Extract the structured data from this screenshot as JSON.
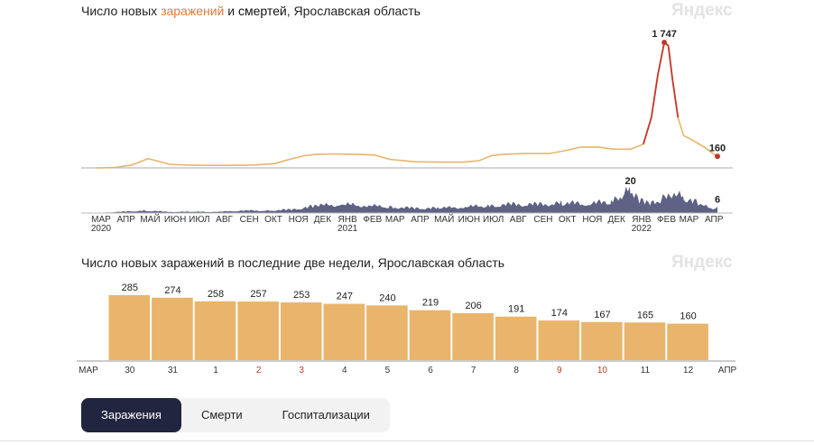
{
  "chart_data": [
    {
      "type": "line",
      "title_parts": [
        "Число новых ",
        "заражений",
        " и ",
        "смертей",
        ", Ярославская область"
      ],
      "logo": "Яндекс",
      "series": [
        {
          "name": "заражений",
          "color": "#e9b46b",
          "peak_color": "#c0392b",
          "x": [
            "2020-03-01",
            "2020-03-25",
            "2020-04-15",
            "2020-05-05",
            "2020-05-15",
            "2020-06-01",
            "2020-06-20",
            "2020-07-15",
            "2020-08-15",
            "2020-09-15",
            "2020-10-10",
            "2020-10-25",
            "2020-11-15",
            "2020-12-01",
            "2020-12-20",
            "2021-01-15",
            "2021-02-10",
            "2021-03-01",
            "2021-04-01",
            "2021-05-01",
            "2021-06-01",
            "2021-06-20",
            "2021-07-05",
            "2021-07-20",
            "2021-08-15",
            "2021-09-15",
            "2021-10-05",
            "2021-10-25",
            "2021-11-15",
            "2021-12-05",
            "2021-12-25",
            "2022-01-10",
            "2022-01-20",
            "2022-01-28",
            "2022-02-05",
            "2022-02-10",
            "2022-02-15",
            "2022-02-22",
            "2022-03-01",
            "2022-03-10",
            "2022-03-25",
            "2022-04-12"
          ],
          "y": [
            0,
            5,
            40,
            130,
            100,
            50,
            40,
            35,
            35,
            40,
            60,
            110,
            170,
            190,
            195,
            190,
            180,
            120,
            85,
            80,
            80,
            100,
            170,
            190,
            200,
            200,
            240,
            290,
            290,
            260,
            260,
            330,
            700,
            1300,
            1747,
            1700,
            1250,
            700,
            450,
            400,
            300,
            160
          ]
        },
        {
          "name": "смертей",
          "color": "#5f6285",
          "x": [
            "2020-03-01",
            "2020-04-01",
            "2020-05-01",
            "2020-06-01",
            "2020-07-01",
            "2020-08-01",
            "2020-09-01",
            "2020-10-01",
            "2020-11-01",
            "2020-12-01",
            "2021-01-01",
            "2021-02-01",
            "2021-03-01",
            "2021-04-01",
            "2021-05-01",
            "2021-06-01",
            "2021-07-01",
            "2021-08-01",
            "2021-09-01",
            "2021-10-01",
            "2021-11-01",
            "2021-12-01",
            "2021-12-15",
            "2021-12-25",
            "2022-01-05",
            "2022-01-20",
            "2022-02-01",
            "2022-02-15",
            "2022-03-01",
            "2022-03-20",
            "2022-04-05",
            "2022-04-12"
          ],
          "y": [
            0,
            1,
            2,
            1,
            1,
            1,
            2,
            2,
            3,
            6,
            7,
            6,
            5,
            4,
            4,
            5,
            6,
            7,
            7,
            8,
            8,
            9,
            14,
            20,
            10,
            8,
            11,
            15,
            13,
            8,
            3,
            6
          ]
        }
      ],
      "labels": {
        "peak": "1 747",
        "last_infections": "160",
        "peak_deaths": "20",
        "last_deaths": "6"
      },
      "x_ticks": [
        {
          "label": "МАР",
          "year": "2020",
          "date": "2020-03-01"
        },
        {
          "label": "АПР",
          "date": "2020-04-01"
        },
        {
          "label": "МАЙ",
          "date": "2020-05-01"
        },
        {
          "label": "ИЮН",
          "date": "2020-06-01"
        },
        {
          "label": "ИЮЛ",
          "date": "2020-07-01"
        },
        {
          "label": "АВГ",
          "date": "2020-08-01"
        },
        {
          "label": "СЕН",
          "date": "2020-09-01"
        },
        {
          "label": "ОКТ",
          "date": "2020-10-01"
        },
        {
          "label": "НОЯ",
          "date": "2020-11-01"
        },
        {
          "label": "ДЕК",
          "date": "2020-12-01"
        },
        {
          "label": "ЯНВ",
          "year": "2021",
          "date": "2021-01-01"
        },
        {
          "label": "ФЕВ",
          "date": "2021-02-01"
        },
        {
          "label": "МАР",
          "date": "2021-03-01"
        },
        {
          "label": "АПР",
          "date": "2021-04-01"
        },
        {
          "label": "МАЙ",
          "date": "2021-05-01"
        },
        {
          "label": "ИЮН",
          "date": "2021-06-01"
        },
        {
          "label": "ИЮЛ",
          "date": "2021-07-01"
        },
        {
          "label": "АВГ",
          "date": "2021-08-01"
        },
        {
          "label": "СЕН",
          "date": "2021-09-01"
        },
        {
          "label": "ОКТ",
          "date": "2021-10-01"
        },
        {
          "label": "НОЯ",
          "date": "2021-11-01"
        },
        {
          "label": "ДЕК",
          "date": "2021-12-01"
        },
        {
          "label": "ЯНВ",
          "year": "2022",
          "date": "2022-01-01"
        },
        {
          "label": "ФЕВ",
          "date": "2022-02-01"
        },
        {
          "label": "МАР",
          "date": "2022-03-01"
        },
        {
          "label": "АПР",
          "date": "2022-04-01"
        }
      ]
    },
    {
      "type": "bar",
      "title": "Число новых заражений в последние две недели, Ярославская область",
      "logo": "Яндекс",
      "color": "#e9b46b",
      "categories": [
        "30",
        "31",
        "1",
        "2",
        "3",
        "4",
        "5",
        "6",
        "7",
        "8",
        "9",
        "10",
        "11",
        "12"
      ],
      "weekend": [
        false,
        false,
        false,
        true,
        true,
        false,
        false,
        false,
        false,
        false,
        true,
        true,
        false,
        false
      ],
      "values": [
        285,
        274,
        258,
        257,
        253,
        247,
        240,
        219,
        206,
        191,
        174,
        167,
        165,
        160
      ],
      "start_label": "МАР",
      "end_label": "АПР"
    }
  ],
  "tabs": [
    {
      "label": "Заражения",
      "active": true
    },
    {
      "label": "Смерти",
      "active": false
    },
    {
      "label": "Госпитализации",
      "active": false
    }
  ]
}
